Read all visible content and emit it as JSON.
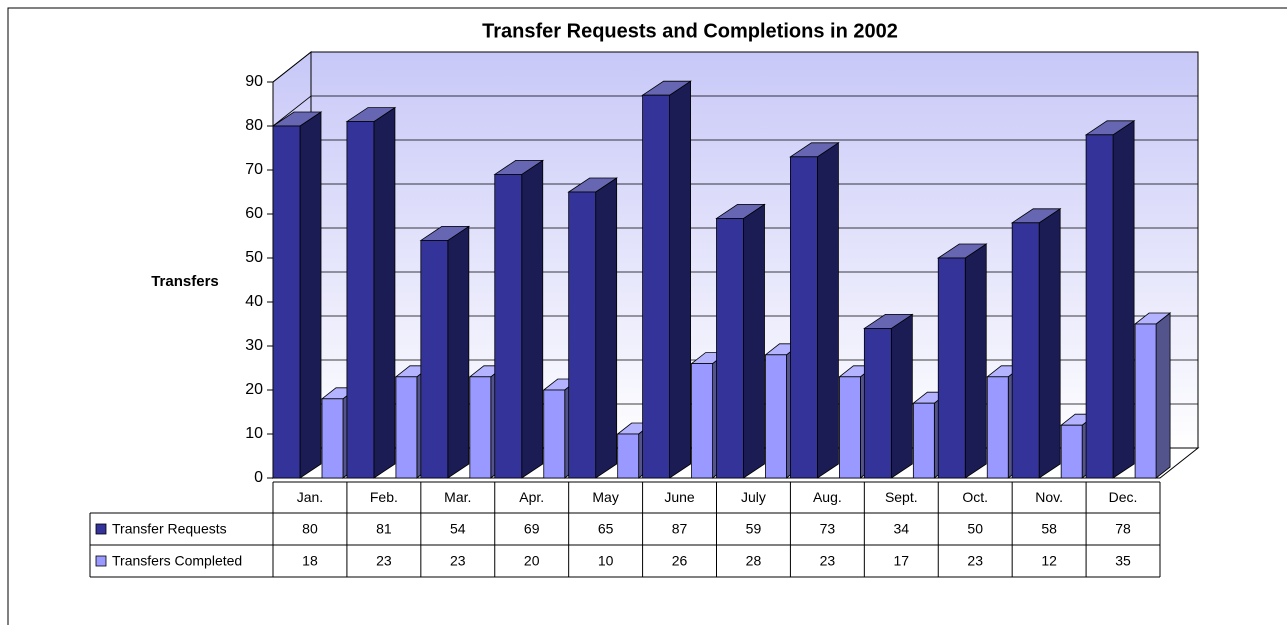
{
  "chart_data": {
    "type": "bar3d",
    "title": "Transfer Requests and Completions in 2002",
    "y_label": "Transfers",
    "categories": [
      "Jan.",
      "Feb.",
      "Mar.",
      "Apr.",
      "May",
      "June",
      "July",
      "Aug.",
      "Sept.",
      "Oct.",
      "Nov.",
      "Dec."
    ],
    "series": [
      {
        "name": "Transfer Requests",
        "color": "#333399",
        "values": [
          80,
          81,
          54,
          69,
          65,
          87,
          59,
          73,
          34,
          50,
          58,
          78
        ]
      },
      {
        "name": "Transfers Completed",
        "color": "#9999ff",
        "values": [
          18,
          23,
          23,
          20,
          10,
          26,
          28,
          23,
          17,
          23,
          12,
          35
        ]
      }
    ],
    "ylim": [
      0,
      90
    ],
    "yticks": [
      0,
      10,
      20,
      30,
      40,
      50,
      60,
      70,
      80,
      90
    ],
    "grid": true
  }
}
